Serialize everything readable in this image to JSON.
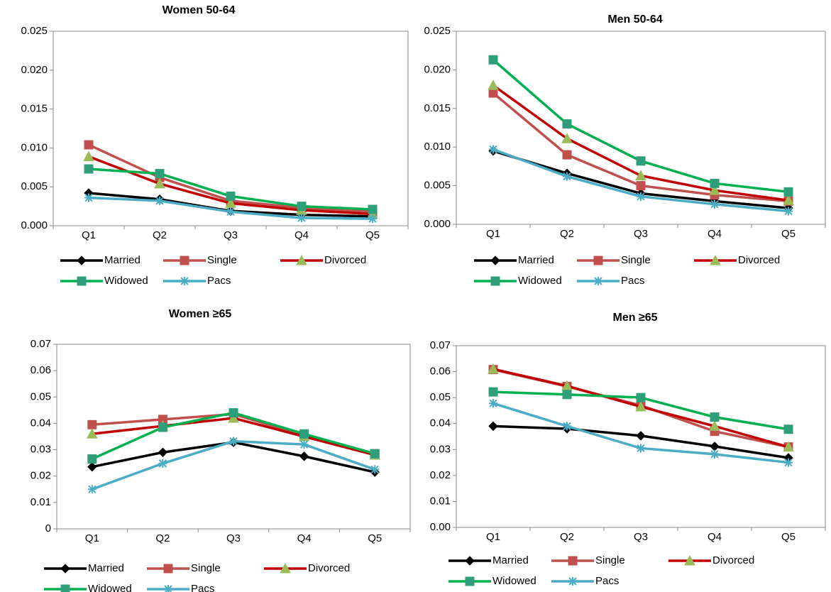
{
  "chart_data": [
    {
      "type": "line",
      "title": "Women 50-64",
      "categories": [
        "Q1",
        "Q2",
        "Q3",
        "Q4",
        "Q5"
      ],
      "ylim": [
        0,
        0.025
      ],
      "yticks": [
        {
          "value": 0,
          "label": "0.000"
        },
        0.005,
        {
          "value": 0.01,
          "label": "0.010"
        },
        0.015,
        {
          "value": 0.02,
          "label": "0.020"
        },
        0.025
      ],
      "legend": "bottom",
      "series": [
        {
          "name": "Married",
          "color": "#000000",
          "marker": "diamond",
          "marker_color": "#000000",
          "values": [
            0.0042,
            0.0034,
            0.0019,
            0.0014,
            0.0012
          ]
        },
        {
          "name": "Single",
          "color": "#c0504d",
          "marker": "square",
          "marker_color": "#c0504d",
          "values": [
            0.0104,
            0.0062,
            0.0032,
            0.0023,
            0.0018
          ]
        },
        {
          "name": "Divorced",
          "color": "#c00000",
          "marker": "triangle",
          "marker_color": "#9bbb59",
          "values": [
            0.0089,
            0.0054,
            0.0029,
            0.002,
            0.0015
          ]
        },
        {
          "name": "Widowed",
          "color": "#00b050",
          "marker": "square",
          "marker_color": "#2f9e7a",
          "values": [
            0.0073,
            0.0067,
            0.0038,
            0.0025,
            0.0021
          ]
        },
        {
          "name": "Pacs",
          "color": "#4bacc6",
          "marker": "star",
          "marker_color": "#4bacc6",
          "values": [
            0.0036,
            0.0032,
            0.0018,
            0.001,
            0.0009
          ]
        }
      ]
    },
    {
      "type": "line",
      "title": "Men 50-64",
      "categories": [
        "Q1",
        "Q2",
        "Q3",
        "Q4",
        "Q5"
      ],
      "ylim": [
        0,
        0.025
      ],
      "yticks": [
        {
          "value": 0,
          "label": "0.000"
        },
        0.005,
        {
          "value": 0.01,
          "label": "0.010"
        },
        0.015,
        {
          "value": 0.02,
          "label": "0.020"
        },
        0.025
      ],
      "legend": "bottom",
      "series": [
        {
          "name": "Married",
          "color": "#000000",
          "marker": "diamond",
          "marker_color": "#000000",
          "values": [
            0.0095,
            0.0066,
            0.004,
            0.003,
            0.0021
          ]
        },
        {
          "name": "Single",
          "color": "#c0504d",
          "marker": "square",
          "marker_color": "#c0504d",
          "values": [
            0.017,
            0.009,
            0.005,
            0.0038,
            0.003
          ]
        },
        {
          "name": "Divorced",
          "color": "#c00000",
          "marker": "triangle",
          "marker_color": "#9bbb59",
          "values": [
            0.018,
            0.0111,
            0.0063,
            0.0044,
            0.0031
          ]
        },
        {
          "name": "Widowed",
          "color": "#00b050",
          "marker": "square",
          "marker_color": "#2f9e7a",
          "values": [
            0.0213,
            0.013,
            0.0082,
            0.0053,
            0.0042
          ]
        },
        {
          "name": "Pacs",
          "color": "#4bacc6",
          "marker": "star",
          "marker_color": "#4bacc6",
          "values": [
            0.0097,
            0.0062,
            0.0036,
            0.0026,
            0.0017
          ]
        }
      ]
    },
    {
      "type": "line",
      "title": "Women  ≥65",
      "categories": [
        "Q1",
        "Q2",
        "Q3",
        "Q4",
        "Q5"
      ],
      "ylim": [
        0,
        0.07
      ],
      "yticks": [
        0,
        0.01,
        0.02,
        0.03,
        0.04,
        0.05,
        0.06,
        0.07
      ],
      "legend": "bottom",
      "series": [
        {
          "name": "Married",
          "color": "#000000",
          "marker": "diamond",
          "marker_color": "#000000",
          "values": [
            0.0235,
            0.029,
            0.0328,
            0.0275,
            0.0215
          ]
        },
        {
          "name": "Single",
          "color": "#c0504d",
          "marker": "square",
          "marker_color": "#c0504d",
          "values": [
            0.0395,
            0.0415,
            0.0435,
            0.0355,
            0.0285
          ]
        },
        {
          "name": "Divorced",
          "color": "#c00000",
          "marker": "triangle",
          "marker_color": "#9bbb59",
          "values": [
            0.036,
            0.039,
            0.042,
            0.035,
            0.028
          ]
        },
        {
          "name": "Widowed",
          "color": "#00b050",
          "marker": "square",
          "marker_color": "#2f9e7a",
          "values": [
            0.0265,
            0.0385,
            0.044,
            0.036,
            0.0285
          ]
        },
        {
          "name": "Pacs",
          "color": "#4bacc6",
          "marker": "star",
          "marker_color": "#4bacc6",
          "values": [
            0.015,
            0.0248,
            0.0332,
            0.032,
            0.0225
          ]
        }
      ]
    },
    {
      "type": "line",
      "title": "Men  ≥65",
      "categories": [
        "Q1",
        "Q2",
        "Q3",
        "Q4",
        "Q5"
      ],
      "ylim": [
        0,
        0.07
      ],
      "yticks": [
        {
          "value": 0,
          "label": "0.00"
        },
        0.01,
        0.02,
        0.03,
        0.04,
        0.05,
        0.06,
        0.07
      ],
      "legend": "bottom",
      "series": [
        {
          "name": "Married",
          "color": "#000000",
          "marker": "diamond",
          "marker_color": "#000000",
          "values": [
            0.039,
            0.038,
            0.0353,
            0.0312,
            0.0268
          ]
        },
        {
          "name": "Single",
          "color": "#c0504d",
          "marker": "square",
          "marker_color": "#c0504d",
          "values": [
            0.0608,
            0.0543,
            0.047,
            0.037,
            0.031
          ]
        },
        {
          "name": "Divorced",
          "color": "#c00000",
          "marker": "triangle",
          "marker_color": "#9bbb59",
          "values": [
            0.061,
            0.0545,
            0.0465,
            0.039,
            0.031
          ]
        },
        {
          "name": "Widowed",
          "color": "#00b050",
          "marker": "square",
          "marker_color": "#2f9e7a",
          "values": [
            0.0522,
            0.0512,
            0.05,
            0.0425,
            0.0378
          ]
        },
        {
          "name": "Pacs",
          "color": "#4bacc6",
          "marker": "star",
          "marker_color": "#4bacc6",
          "values": [
            0.0478,
            0.039,
            0.0305,
            0.0282,
            0.025
          ]
        }
      ]
    }
  ]
}
